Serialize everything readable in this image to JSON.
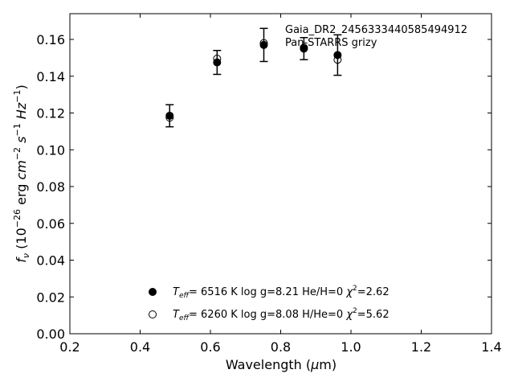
{
  "chart_data": {
    "type": "scatter",
    "xlim": [
      0.2,
      1.4
    ],
    "ylim": [
      0.0,
      0.174
    ],
    "x_ticks": [
      "0.2",
      "0.4",
      "0.6",
      "0.8",
      "1.0",
      "1.2",
      "1.4"
    ],
    "y_ticks": [
      "0.00",
      "0.02",
      "0.04",
      "0.06",
      "0.08",
      "0.10",
      "0.12",
      "0.14",
      "0.16"
    ],
    "xlabel": "Wavelength (µm)",
    "ylabel": "f_ν (10^-26 erg cm^-2 s^-1 Hz^-1)",
    "annotation_lines": [
      "Gaia_DR2_2456333440585494912",
      "Pan-STARRS grizy"
    ],
    "grid": false,
    "legend_position": "bottom-center",
    "observed": {
      "x": [
        0.484,
        0.619,
        0.752,
        0.866,
        0.962
      ],
      "y": [
        0.1185,
        0.1475,
        0.157,
        0.155,
        0.1515
      ],
      "yerr": [
        0.006,
        0.0065,
        0.009,
        0.006,
        0.011
      ]
    },
    "series": [
      {
        "marker": "filled",
        "legend": {
          "teff_value": "6516 K",
          "params": "log g=8.21  He/H=0",
          "chi2": "=2.62"
        },
        "x": [
          0.484,
          0.619,
          0.752,
          0.866,
          0.962
        ],
        "y": [
          0.1185,
          0.1475,
          0.157,
          0.155,
          0.1515
        ]
      },
      {
        "marker": "open",
        "legend": {
          "teff_value": "6260 K",
          "params": "log g=8.08  H/He=0",
          "chi2": "=5.62"
        },
        "x": [
          0.484,
          0.619,
          0.752,
          0.866,
          0.962
        ],
        "y": [
          0.1175,
          0.1495,
          0.158,
          0.1555,
          0.149
        ]
      }
    ]
  }
}
